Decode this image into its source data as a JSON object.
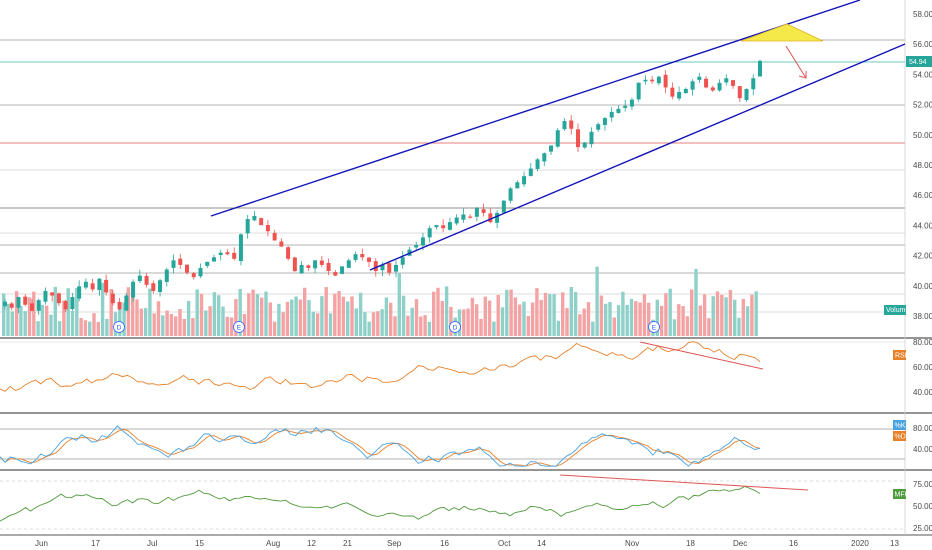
{
  "chart_data": {
    "type": "candlestick",
    "price_axis": {
      "ticks": [
        "58.00",
        "56.00",
        "54.00",
        "52.00",
        "50.00",
        "48.00",
        "46.00",
        "44.00",
        "42.00",
        "40.00",
        "38.00"
      ],
      "last_price": "54.94"
    },
    "x_axis": {
      "labels": [
        "Jun",
        "17",
        "Jul",
        "15",
        "Aug",
        "12",
        "21",
        "Sep",
        "16",
        "Oct",
        "14",
        "Nov",
        "18",
        "Dec",
        "16",
        "2020",
        "13"
      ]
    },
    "price_series": {
      "closes": [
        39.2,
        38.8,
        39.5,
        39.0,
        38.6,
        39.3,
        39.9,
        39.6,
        39.1,
        38.7,
        39.5,
        40.2,
        40.5,
        40.0,
        40.7,
        39.8,
        39.1,
        38.7,
        39.6,
        40.5,
        40.9,
        40.3,
        39.9,
        40.6,
        41.3,
        41.9,
        41.6,
        41.1,
        40.8,
        41.4,
        41.8,
        42.1,
        42.4,
        42.3,
        42.0,
        43.6,
        44.6,
        44.8,
        44.2,
        43.8,
        43.2,
        42.8,
        42.0,
        41.2,
        41.6,
        41.4,
        41.9,
        41.6,
        41.2,
        40.9,
        41.5,
        41.9,
        42.3,
        42.1,
        41.8,
        41.2,
        41.6,
        41.1,
        41.6,
        42.1,
        42.6,
        42.9,
        43.4,
        44.0,
        44.2,
        44.0,
        44.4,
        44.7,
        44.9,
        44.7,
        45.3,
        45.0,
        44.4,
        45.0,
        45.8,
        46.6,
        47.0,
        47.4,
        47.9,
        48.5,
        48.9,
        49.4,
        50.4,
        51.0,
        50.5,
        49.3,
        49.6,
        50.3,
        50.8,
        51.2,
        51.6,
        51.8,
        52.0,
        52.4,
        53.5,
        53.7,
        53.6,
        53.9,
        53.2,
        52.6,
        52.9,
        53.1,
        53.6,
        53.9,
        53.2,
        53.0,
        53.5,
        53.8,
        53.3,
        52.5,
        53.1,
        53.8,
        54.94
      ]
    },
    "volume_label": "Volume",
    "event_markers": [
      "D",
      "E",
      "D",
      "E"
    ],
    "rsi": {
      "label": "RSI",
      "ticks": [
        "80.00",
        "60.00",
        "40.00"
      ]
    },
    "stochastic": {
      "labels": [
        "%K",
        "%D"
      ],
      "ticks": [
        "80.00",
        "40.00"
      ]
    },
    "mfi": {
      "label": "MFI",
      "ticks": [
        "75.00",
        "50.00",
        "25.00"
      ]
    },
    "colors": {
      "up": "#26a69a",
      "down": "#ef5350",
      "channel": "#1414b8",
      "rsi": "#e8802a",
      "k": "#4aa3df",
      "d": "#e8802a",
      "mfi": "#4f9a3b",
      "divergence": "#e05555",
      "triangle": "#f5e94a"
    }
  }
}
